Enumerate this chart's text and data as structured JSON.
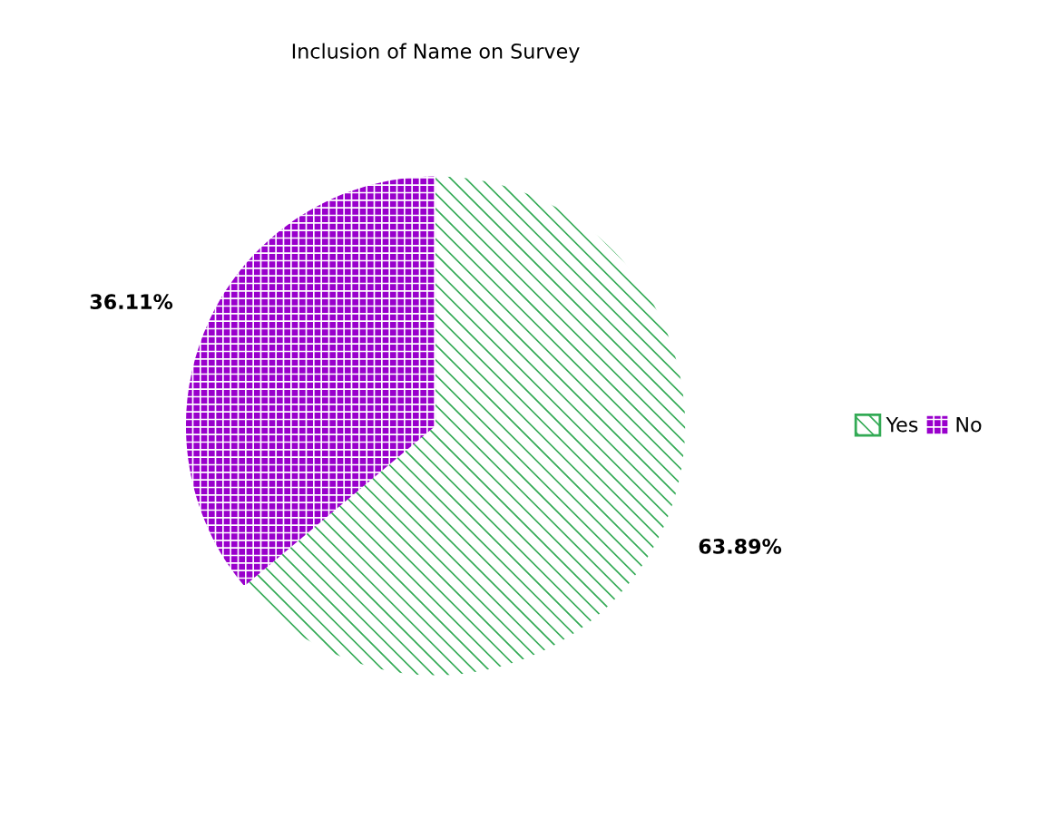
{
  "chart_data": {
    "type": "pie",
    "title": "Inclusion of Name on Survey",
    "categories": [
      "Yes",
      "No"
    ],
    "values": [
      63.89,
      36.11
    ],
    "colors": [
      "#33aa55",
      "#9900cc"
    ],
    "value_labels": [
      "63.89%",
      "36.11%"
    ],
    "legend": "right"
  }
}
